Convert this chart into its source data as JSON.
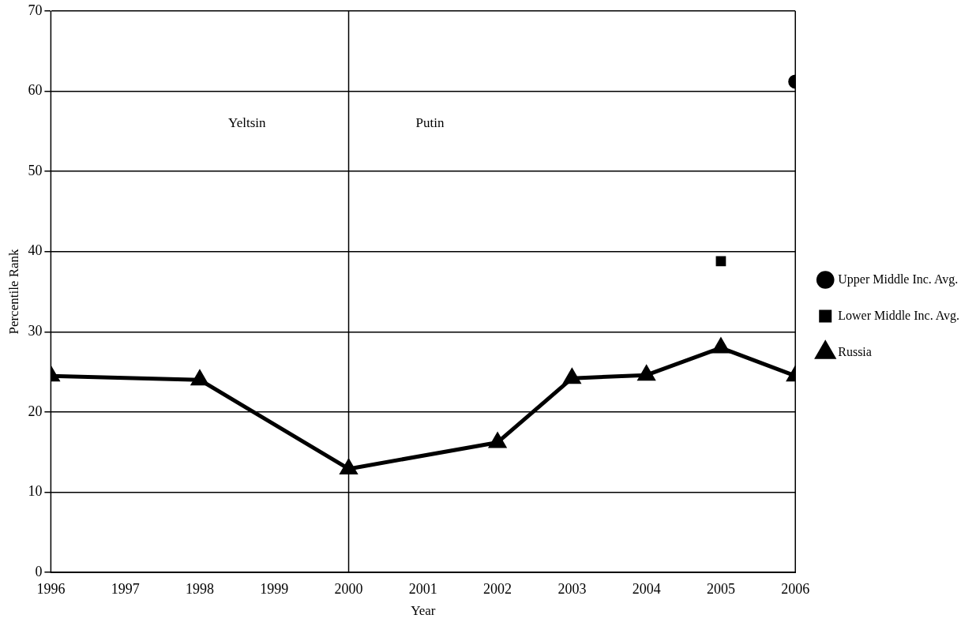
{
  "chart_data": {
    "type": "line",
    "xlabel": "Year",
    "ylabel": "Percentile Rank",
    "xlim": [
      1996,
      2006
    ],
    "xticks": [
      1996,
      1997,
      1998,
      1999,
      2000,
      2001,
      2002,
      2003,
      2004,
      2005,
      2006
    ],
    "ylim": [
      0,
      70
    ],
    "yticks": [
      0,
      10,
      20,
      30,
      40,
      50,
      60,
      70
    ],
    "grid": "y",
    "legend": "right",
    "series": [
      {
        "name": "Upper Middle Inc. Avg.",
        "type": "scatter",
        "marker": "circle",
        "color": "#000000",
        "x": [
          2006
        ],
        "values": [
          61.2
        ]
      },
      {
        "name": "Lower Middle Inc. Avg.",
        "type": "scatter",
        "marker": "square",
        "color": "#000000",
        "x": [
          2005
        ],
        "values": [
          38.8
        ]
      },
      {
        "name": "Russia",
        "type": "line",
        "marker": "triangle",
        "color": "#000000",
        "x": [
          1996,
          1998,
          2000,
          2002,
          2003,
          2004,
          2005,
          2006
        ],
        "values": [
          24.5,
          24.0,
          12.9,
          16.2,
          24.2,
          24.6,
          28.0,
          24.5
        ]
      }
    ],
    "ref_lines": [
      {
        "axis": "x",
        "value": 2000,
        "color": "#000000"
      }
    ],
    "annotations": [
      "Yeltsin",
      "Putin"
    ]
  }
}
